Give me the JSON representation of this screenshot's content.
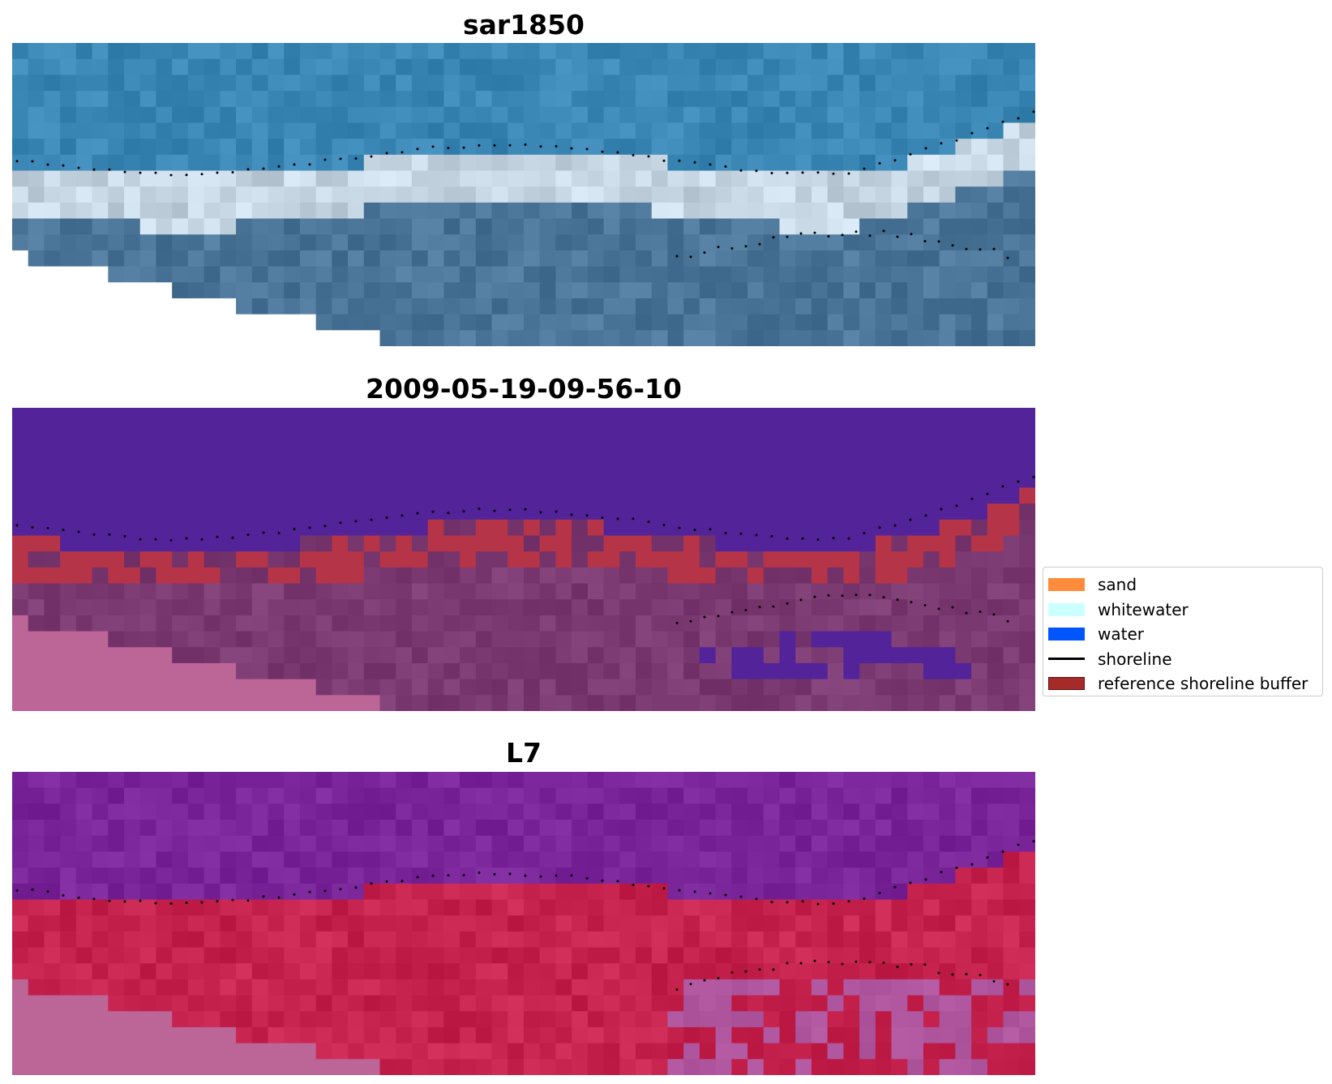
{
  "panels": [
    {
      "title": "sar1850",
      "style": "rgb"
    },
    {
      "title": "2009-05-19-09-56-10",
      "style": "classified"
    },
    {
      "title": "L7",
      "style": "false-color"
    }
  ],
  "legend": {
    "items": [
      {
        "label": "sand",
        "kind": "patch",
        "color": "#ff8c3c",
        "edge": "#ff8c3c"
      },
      {
        "label": "whitewater",
        "kind": "patch",
        "color": "#ccffff",
        "edge": "#ccffff"
      },
      {
        "label": "water",
        "kind": "patch",
        "color": "#0055ff",
        "edge": "#0055ff"
      },
      {
        "label": "shoreline",
        "kind": "line",
        "color": "#000000"
      },
      {
        "label": "reference shoreline buffer",
        "kind": "patch",
        "color": "#a52a2a",
        "edge": "#6b0a0a"
      }
    ]
  },
  "colors": {
    "rgb_ocean": "#3a86b4",
    "rgb_surf": "#c6d6e2",
    "rgb_land": "#4a7598",
    "cls_water": "#522399",
    "cls_buffer": "#b63447",
    "cls_land": "#7c3a72",
    "cls_pink": "#bc6597",
    "fc_ocean": "#7a259a",
    "fc_sand": "#c6244e",
    "fc_pink": "#bc6597"
  }
}
